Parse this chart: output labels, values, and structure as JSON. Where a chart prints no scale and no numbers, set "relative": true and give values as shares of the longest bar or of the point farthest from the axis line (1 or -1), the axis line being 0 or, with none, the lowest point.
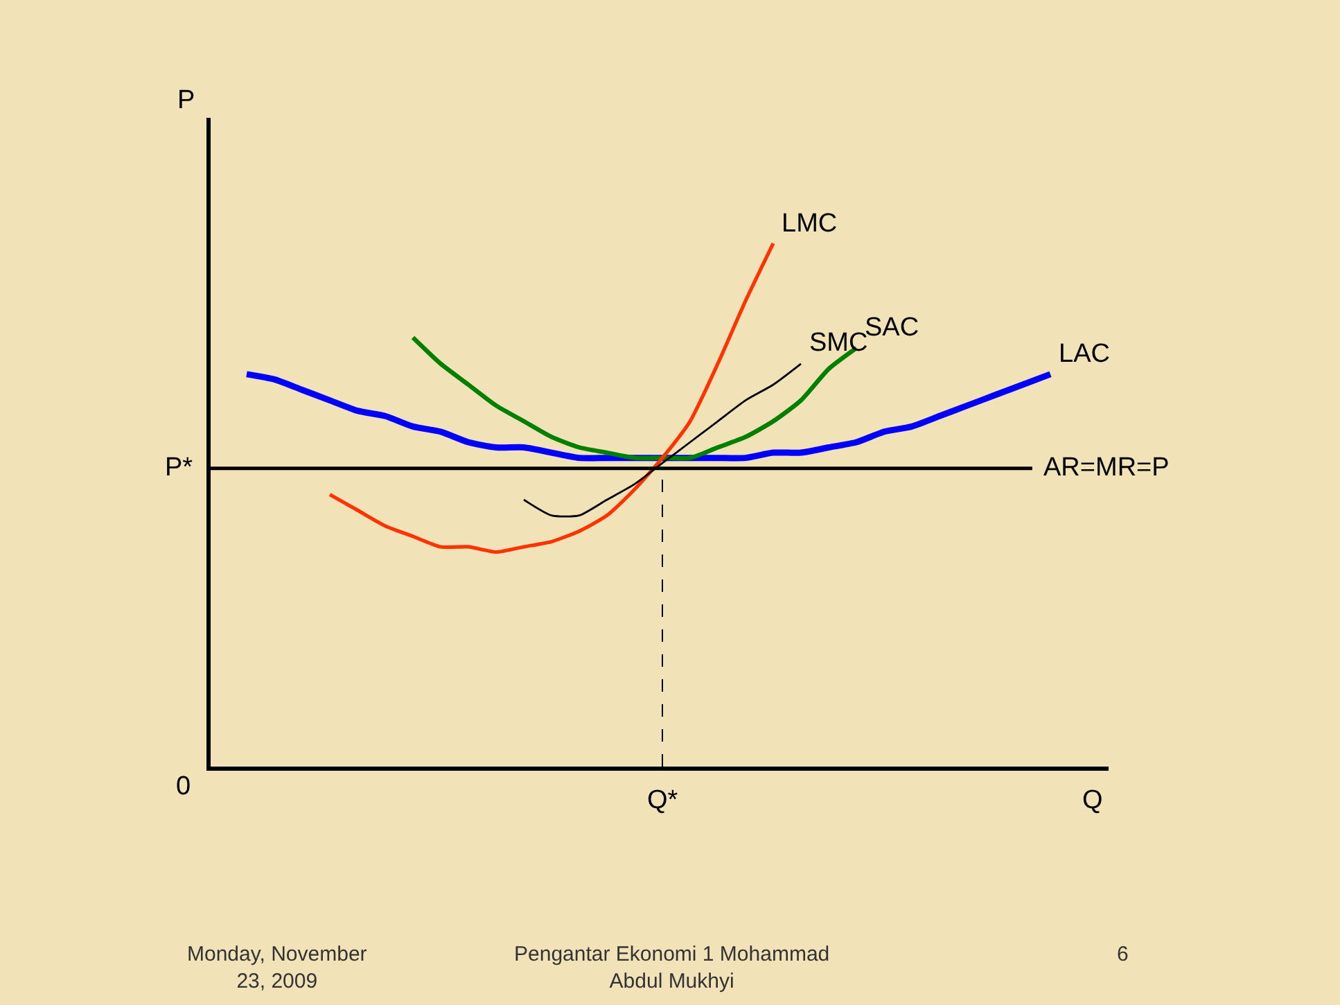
{
  "chart_data": {
    "type": "line",
    "relative": true,
    "xlabel": "Q",
    "ylabel": "P",
    "categories": [
      null,
      null,
      null,
      null,
      null,
      null,
      null,
      null,
      null,
      null,
      null,
      null,
      null,
      null,
      null,
      null,
      null,
      null,
      null,
      null,
      null,
      null,
      null,
      null,
      null,
      null,
      null,
      null,
      null,
      null,
      null
    ],
    "series": [
      {
        "name": "LAC",
        "color": "#0000ff",
        "values": [
          null,
          0.75,
          0.74,
          0.72,
          0.7,
          0.68,
          0.67,
          0.65,
          0.64,
          0.62,
          0.61,
          0.61,
          0.6,
          0.59,
          0.59,
          0.59,
          0.59,
          0.59,
          0.59,
          0.59,
          0.6,
          0.6,
          0.61,
          0.62,
          0.64,
          0.65,
          0.67,
          0.69,
          0.71,
          0.73,
          0.75
        ]
      },
      {
        "name": "SAC",
        "color": "#008000",
        "values": [
          null,
          null,
          null,
          null,
          null,
          null,
          null,
          0.82,
          0.77,
          0.73,
          0.69,
          0.66,
          0.63,
          0.61,
          0.6,
          0.59,
          0.59,
          0.59,
          0.61,
          0.63,
          0.66,
          0.7,
          0.76,
          0.8,
          null,
          null,
          null,
          null,
          null,
          null,
          null
        ]
      },
      {
        "name": "LMC",
        "color": "#ff3300",
        "values": [
          null,
          null,
          null,
          null,
          0.52,
          0.49,
          0.46,
          0.44,
          0.42,
          0.42,
          0.41,
          0.42,
          0.43,
          0.45,
          0.48,
          0.53,
          0.59,
          0.66,
          0.77,
          0.89,
          1.0,
          null,
          null,
          null,
          null,
          null,
          null,
          null,
          null,
          null,
          null
        ]
      },
      {
        "name": "SMC",
        "color": "#000000",
        "values": [
          null,
          null,
          null,
          null,
          null,
          null,
          null,
          null,
          null,
          null,
          null,
          0.51,
          0.48,
          0.48,
          0.51,
          0.54,
          0.58,
          0.62,
          0.66,
          0.7,
          0.73,
          0.77,
          null,
          null,
          null,
          null,
          null,
          null,
          null,
          null,
          null
        ]
      }
    ],
    "ref_lines": [
      {
        "axis": "y",
        "value": 0.57,
        "label": "AR=MR=P",
        "color": "#000000",
        "line_style": "solid"
      }
    ],
    "annotations": [
      "P*",
      "0",
      "Q*",
      "Monday, November 23, 2009",
      "Pengantar Ekonomi 1 Mohammad Abdul Mukhyi",
      "6"
    ],
    "grid": false,
    "marker": "none",
    "line_style": "solid"
  }
}
